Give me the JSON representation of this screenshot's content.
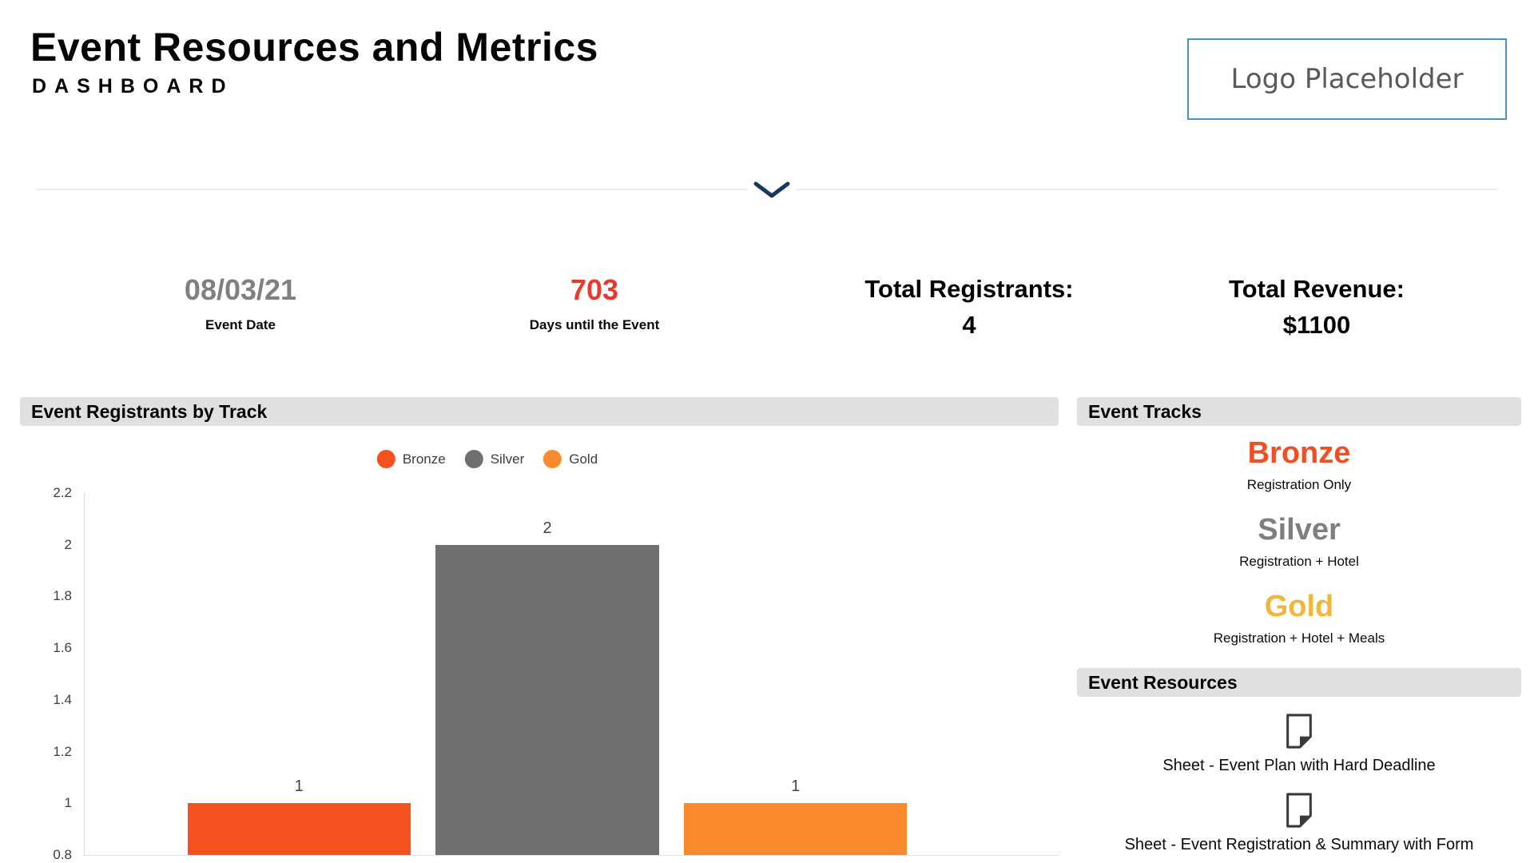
{
  "header": {
    "title": "Event Resources and Metrics",
    "subtitle": "DASHBOARD",
    "logo_placeholder": "Logo Placeholder"
  },
  "divider": {
    "icon": "chevron-down-icon",
    "color": "#16375f"
  },
  "stats": {
    "event_date": {
      "value": "08/03/21",
      "label": "Event Date",
      "color": "#808080"
    },
    "days_until": {
      "value": "703",
      "label": "Days until the Event",
      "color": "#e8392e"
    },
    "total_registrants": {
      "line1": "Total Registrants:",
      "line2": "4"
    },
    "total_revenue": {
      "line1": "Total Revenue:",
      "line2": "$1100"
    }
  },
  "chart_data": {
    "type": "bar",
    "title": "Event Registrants by Track",
    "categories": [
      "Bronze",
      "Silver",
      "Gold"
    ],
    "values": [
      1,
      2,
      1
    ],
    "colors": [
      "#f4511e",
      "#6f6f6f",
      "#fa8a2e"
    ],
    "legend": [
      "Bronze",
      "Silver",
      "Gold"
    ],
    "legend_position": "top",
    "xlabel": "",
    "ylabel": "",
    "ylim": [
      0.8,
      2.2
    ],
    "y_ticks": [
      2.2,
      2,
      1.8,
      1.6,
      1.4,
      1.2,
      1,
      0.8
    ],
    "grid": "off",
    "data_labels": true
  },
  "tracks_panel": {
    "header": "Event Tracks",
    "tracks": [
      {
        "name": "Bronze",
        "desc": "Registration Only",
        "color": "#f04e23"
      },
      {
        "name": "Silver",
        "desc": "Registration + Hotel",
        "color": "#7f7f7f"
      },
      {
        "name": "Gold",
        "desc": "Registration + Hotel + Meals",
        "color": "#efb73c"
      }
    ]
  },
  "resources_panel": {
    "header": "Event Resources",
    "items": [
      {
        "icon": "sheet-icon",
        "label": "Sheet - Event Plan with Hard Deadline"
      },
      {
        "icon": "sheet-icon",
        "label": "Sheet - Event Registration & Summary with Form"
      }
    ]
  }
}
